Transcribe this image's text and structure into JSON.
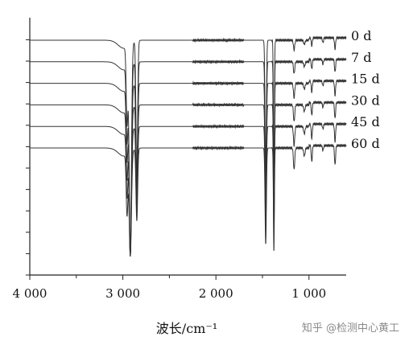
{
  "chart_data": {
    "type": "line",
    "xlabel": "波长/cm⁻¹",
    "xlim": [
      4000,
      600
    ],
    "x_reversed": true,
    "x_ticks": [
      4000,
      3000,
      2000,
      1000
    ],
    "x_tick_labels": [
      "4 000",
      "3 000",
      "2 000",
      "1 000"
    ],
    "y_ticks_shown": true,
    "y_tick_labels_shown": false,
    "grid": false,
    "line_color": "#333333",
    "series": [
      {
        "name": "0 d"
      },
      {
        "name": "7 d"
      },
      {
        "name": "15 d"
      },
      {
        "name": "30 d"
      },
      {
        "name": "45 d"
      },
      {
        "name": "60 d"
      }
    ],
    "absorption_bands_cm-1": [
      2955,
      2920,
      2850,
      1465,
      1377,
      1160,
      970,
      720
    ]
  },
  "watermark": "知乎 @检测中心黄工"
}
